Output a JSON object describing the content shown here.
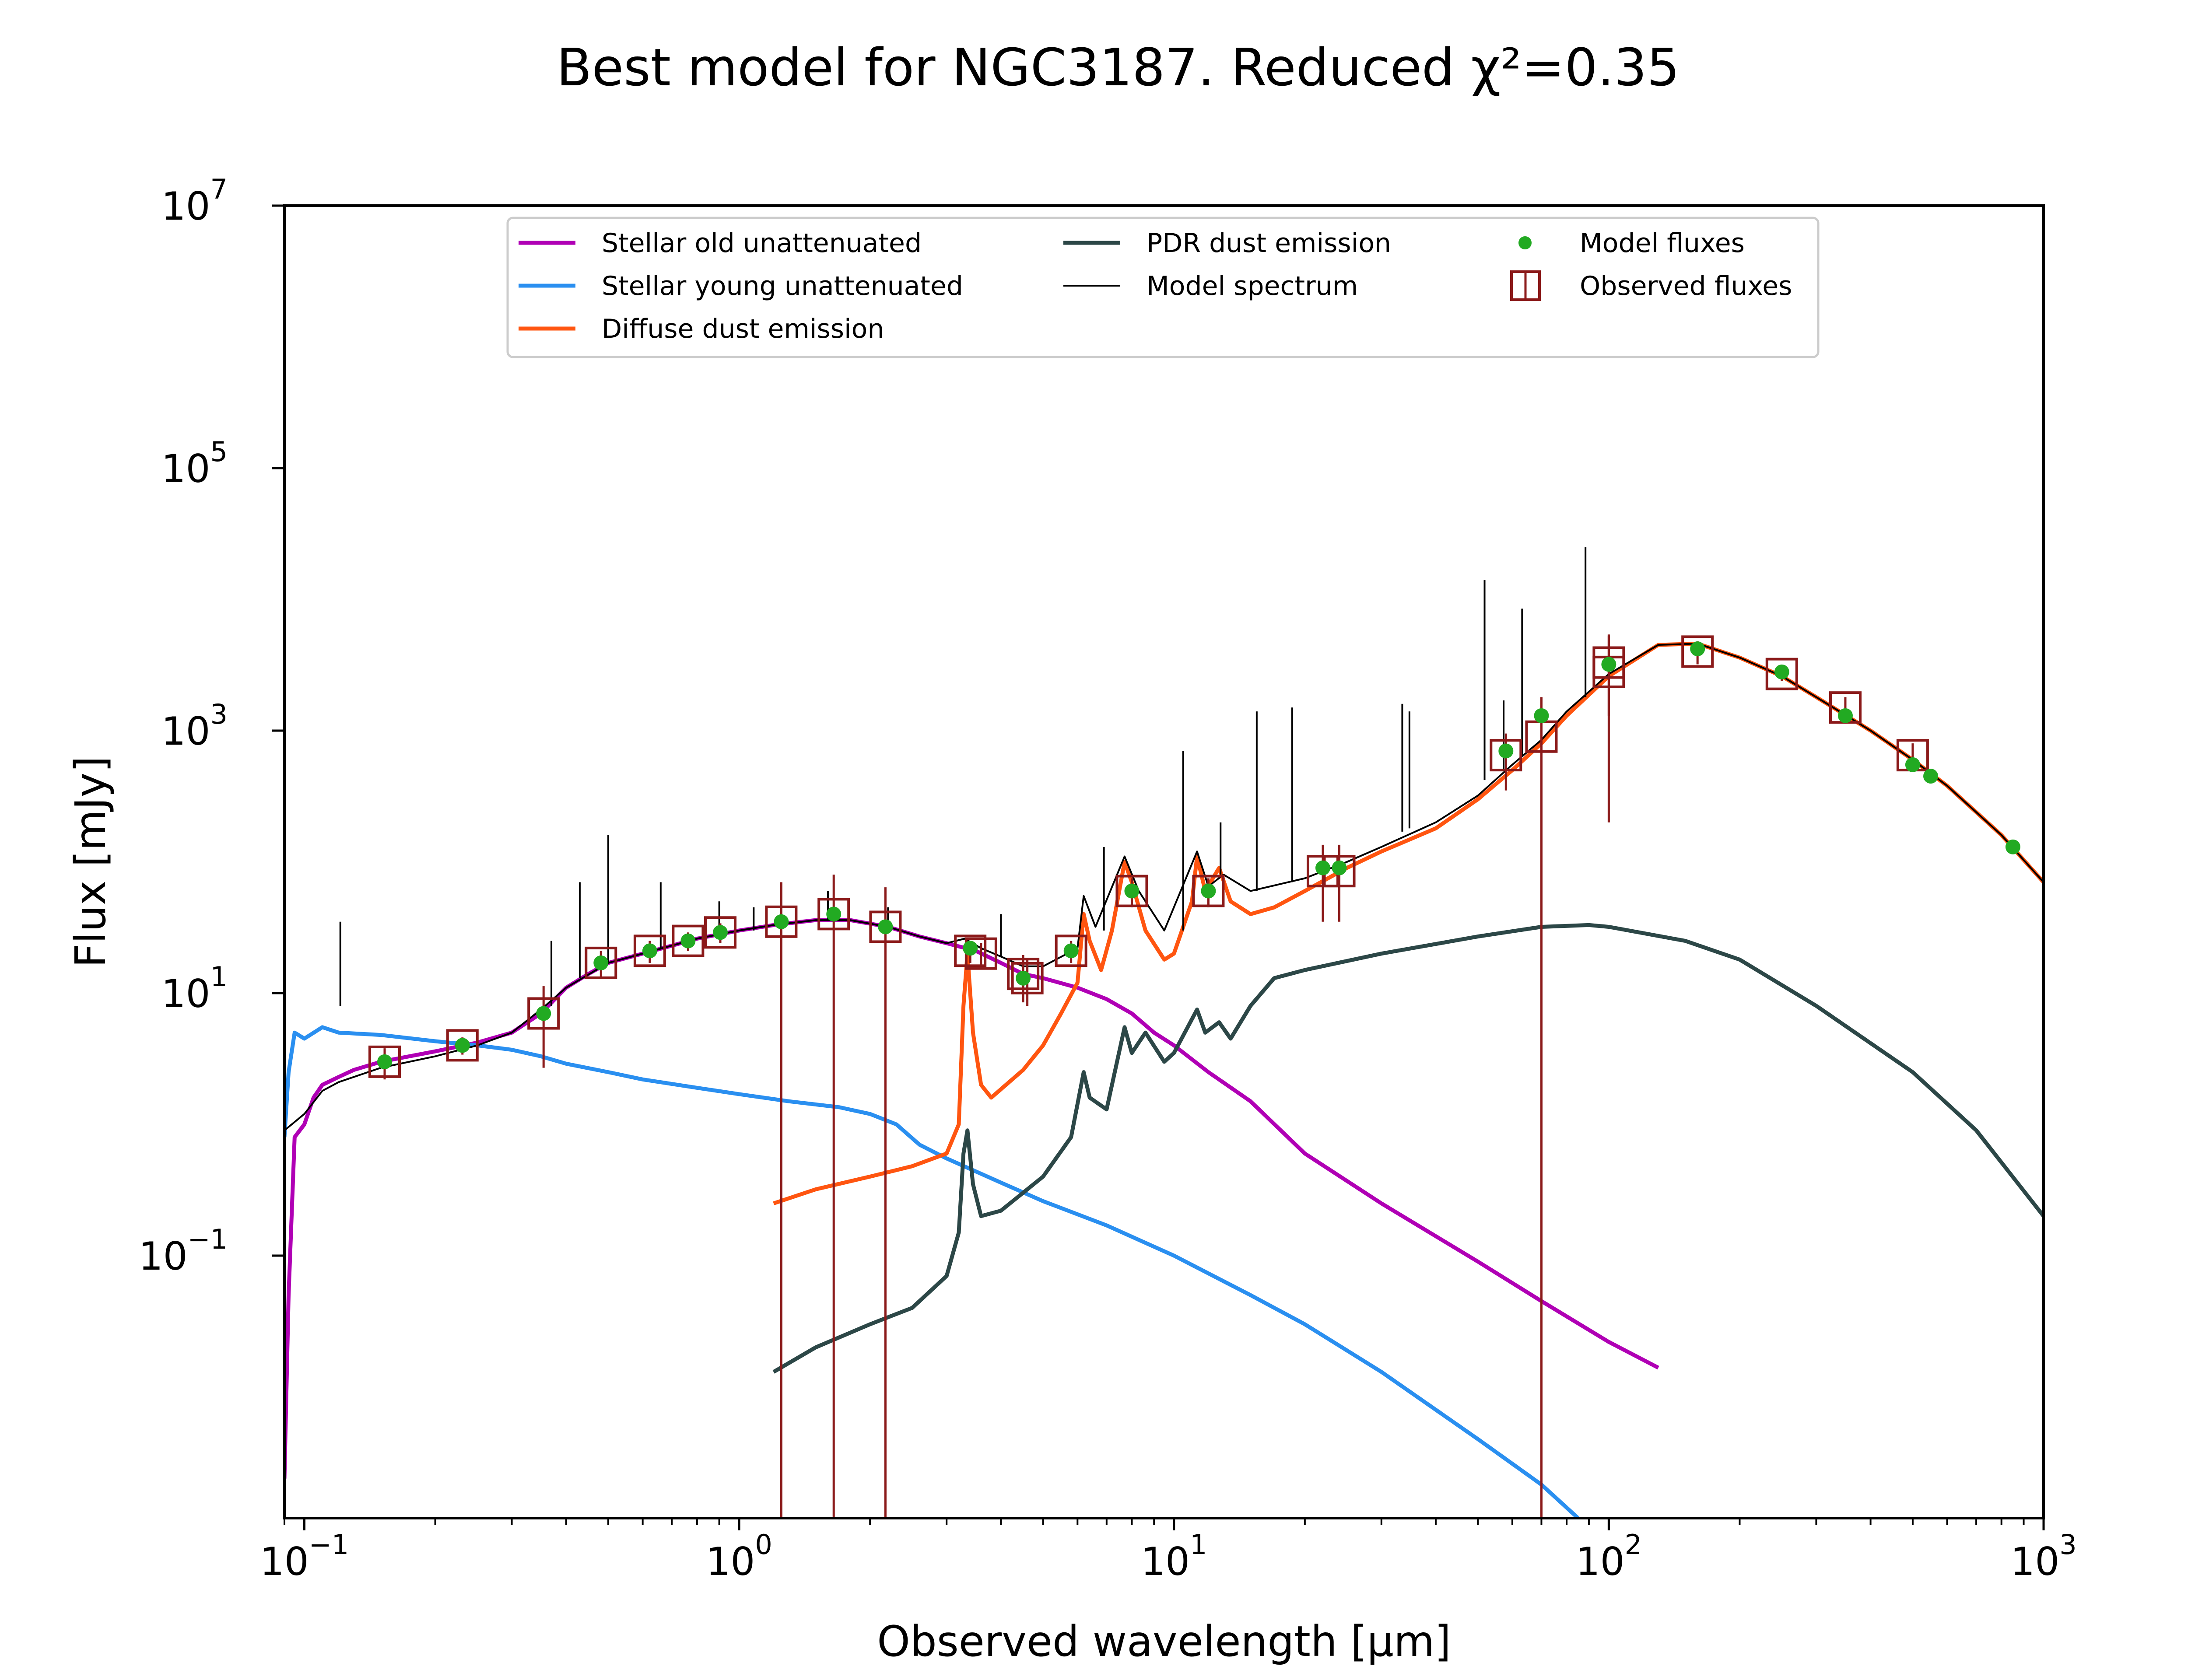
{
  "chart_data": {
    "type": "line",
    "title": "Best model for NGC3187. Reduced χ²=0.35",
    "xlabel": "Observed wavelength [μm]",
    "ylabel": "Flux [mJy]",
    "xscale": "log",
    "yscale": "log",
    "xlim": [
      0.09,
      1000
    ],
    "ylim": [
      0.001,
      10000000
    ],
    "grid": false,
    "legend_position": "top-center",
    "x_ticks": [
      {
        "value": 0.1,
        "base": "10",
        "exp": "−1"
      },
      {
        "value": 1,
        "base": "10",
        "exp": "0"
      },
      {
        "value": 10,
        "base": "10",
        "exp": "1"
      },
      {
        "value": 100,
        "base": "10",
        "exp": "2"
      },
      {
        "value": 1000,
        "base": "10",
        "exp": "3"
      }
    ],
    "y_ticks": [
      {
        "value": 0.1,
        "base": "10",
        "exp": "−1"
      },
      {
        "value": 10,
        "base": "10",
        "exp": "1"
      },
      {
        "value": 1000,
        "base": "10",
        "exp": "3"
      },
      {
        "value": 100000,
        "base": "10",
        "exp": "5"
      },
      {
        "value": 10000000,
        "base": "10",
        "exp": "7"
      }
    ],
    "series": [
      {
        "name": "Stellar old unattenuated",
        "color": "#b000b5",
        "points": [
          [
            0.09,
            0.002
          ],
          [
            0.092,
            0.05
          ],
          [
            0.095,
            0.8
          ],
          [
            0.1,
            1.0
          ],
          [
            0.105,
            1.6
          ],
          [
            0.11,
            2.0
          ],
          [
            0.12,
            2.3
          ],
          [
            0.13,
            2.6
          ],
          [
            0.15,
            3.0
          ],
          [
            0.2,
            3.6
          ],
          [
            0.25,
            4.2
          ],
          [
            0.3,
            5.0
          ],
          [
            0.35,
            7.0
          ],
          [
            0.4,
            11
          ],
          [
            0.45,
            14
          ],
          [
            0.5,
            17
          ],
          [
            0.6,
            20
          ],
          [
            0.7,
            23
          ],
          [
            0.8,
            26
          ],
          [
            1.0,
            30
          ],
          [
            1.2,
            33
          ],
          [
            1.5,
            36
          ],
          [
            1.8,
            36
          ],
          [
            2.2,
            32
          ],
          [
            2.6,
            27
          ],
          [
            3.0,
            24
          ],
          [
            3.5,
            21
          ],
          [
            4.0,
            17
          ],
          [
            4.5,
            14
          ],
          [
            5.0,
            13
          ],
          [
            6.0,
            11
          ],
          [
            7.0,
            9
          ],
          [
            8.0,
            7
          ],
          [
            9.0,
            5
          ],
          [
            10,
            4
          ],
          [
            12,
            2.5
          ],
          [
            15,
            1.5
          ],
          [
            20,
            0.6
          ],
          [
            30,
            0.25
          ],
          [
            50,
            0.09
          ],
          [
            70,
            0.045
          ],
          [
            100,
            0.022
          ],
          [
            130,
            0.014
          ]
        ]
      },
      {
        "name": "Stellar young unattenuated",
        "color": "#2a8ff0",
        "points": [
          [
            0.09,
            0.8
          ],
          [
            0.092,
            2.5
          ],
          [
            0.095,
            5.0
          ],
          [
            0.1,
            4.5
          ],
          [
            0.11,
            5.5
          ],
          [
            0.12,
            5.0
          ],
          [
            0.15,
            4.8
          ],
          [
            0.2,
            4.3
          ],
          [
            0.25,
            4.0
          ],
          [
            0.3,
            3.7
          ],
          [
            0.35,
            3.3
          ],
          [
            0.4,
            2.9
          ],
          [
            0.5,
            2.5
          ],
          [
            0.6,
            2.2
          ],
          [
            0.8,
            1.9
          ],
          [
            1.0,
            1.7
          ],
          [
            1.3,
            1.5
          ],
          [
            1.7,
            1.35
          ],
          [
            2.0,
            1.2
          ],
          [
            2.3,
            1.0
          ],
          [
            2.6,
            0.7
          ],
          [
            3.0,
            0.55
          ],
          [
            4.0,
            0.36
          ],
          [
            5.0,
            0.26
          ],
          [
            7.0,
            0.17
          ],
          [
            10,
            0.1
          ],
          [
            15,
            0.05
          ],
          [
            20,
            0.03
          ],
          [
            30,
            0.013
          ],
          [
            50,
            0.004
          ],
          [
            70,
            0.0018
          ],
          [
            85,
            0.001
          ]
        ]
      },
      {
        "name": "Diffuse dust emission",
        "color": "#ff5510",
        "points": [
          [
            1.2,
            0.25
          ],
          [
            1.5,
            0.32
          ],
          [
            2.0,
            0.4
          ],
          [
            2.5,
            0.48
          ],
          [
            3.0,
            0.6
          ],
          [
            3.2,
            1.0
          ],
          [
            3.28,
            8.0
          ],
          [
            3.35,
            20
          ],
          [
            3.45,
            5.0
          ],
          [
            3.6,
            2.0
          ],
          [
            3.8,
            1.6
          ],
          [
            4.5,
            2.6
          ],
          [
            5.0,
            4.0
          ],
          [
            5.5,
            7.0
          ],
          [
            6.0,
            12
          ],
          [
            6.2,
            40
          ],
          [
            6.4,
            25
          ],
          [
            6.8,
            15
          ],
          [
            7.2,
            30
          ],
          [
            7.7,
            100
          ],
          [
            8.0,
            70
          ],
          [
            8.6,
            30
          ],
          [
            9.5,
            18
          ],
          [
            10,
            20
          ],
          [
            11.0,
            50
          ],
          [
            11.3,
            110
          ],
          [
            11.8,
            60
          ],
          [
            12.7,
            90
          ],
          [
            13.5,
            50
          ],
          [
            15,
            40
          ],
          [
            17,
            45
          ],
          [
            20,
            60
          ],
          [
            25,
            90
          ],
          [
            30,
            120
          ],
          [
            40,
            180
          ],
          [
            50,
            300
          ],
          [
            60,
            500
          ],
          [
            70,
            800
          ],
          [
            80,
            1300
          ],
          [
            100,
            2600
          ],
          [
            130,
            4500
          ],
          [
            160,
            4600
          ],
          [
            200,
            3600
          ],
          [
            250,
            2600
          ],
          [
            300,
            1800
          ],
          [
            400,
            1000
          ],
          [
            500,
            600
          ],
          [
            600,
            380
          ],
          [
            800,
            160
          ],
          [
            1000,
            70
          ]
        ]
      },
      {
        "name": "PDR dust emission",
        "color": "#2c4747",
        "points": [
          [
            1.2,
            0.013
          ],
          [
            1.5,
            0.02
          ],
          [
            2.0,
            0.03
          ],
          [
            2.5,
            0.04
          ],
          [
            3.0,
            0.07
          ],
          [
            3.2,
            0.15
          ],
          [
            3.28,
            0.6
          ],
          [
            3.35,
            0.9
          ],
          [
            3.45,
            0.35
          ],
          [
            3.6,
            0.2
          ],
          [
            4.0,
            0.22
          ],
          [
            5.0,
            0.4
          ],
          [
            5.8,
            0.8
          ],
          [
            6.2,
            2.5
          ],
          [
            6.4,
            1.6
          ],
          [
            7.0,
            1.3
          ],
          [
            7.7,
            5.5
          ],
          [
            8.0,
            3.5
          ],
          [
            8.6,
            5.0
          ],
          [
            9.5,
            3.0
          ],
          [
            10,
            3.5
          ],
          [
            11.3,
            7.5
          ],
          [
            11.8,
            5.0
          ],
          [
            12.7,
            6.0
          ],
          [
            13.5,
            4.5
          ],
          [
            15,
            8
          ],
          [
            17,
            13
          ],
          [
            20,
            15
          ],
          [
            30,
            20
          ],
          [
            50,
            27
          ],
          [
            70,
            32
          ],
          [
            90,
            33
          ],
          [
            100,
            32
          ],
          [
            150,
            25
          ],
          [
            200,
            18
          ],
          [
            300,
            8
          ],
          [
            500,
            2.5
          ],
          [
            700,
            0.9
          ],
          [
            1000,
            0.2
          ]
        ]
      },
      {
        "name": "Model spectrum",
        "color": "#000000",
        "points": [
          [
            0.09,
            0.9
          ],
          [
            0.1,
            1.2
          ],
          [
            0.11,
            1.8
          ],
          [
            0.12,
            2.1
          ],
          [
            0.15,
            2.7
          ],
          [
            0.2,
            3.3
          ],
          [
            0.25,
            4.0
          ],
          [
            0.3,
            5.0
          ],
          [
            0.35,
            7.5
          ],
          [
            0.4,
            11
          ],
          [
            0.5,
            17
          ],
          [
            0.6,
            20
          ],
          [
            0.8,
            26
          ],
          [
            1.0,
            30
          ],
          [
            1.2,
            33
          ],
          [
            1.5,
            36
          ],
          [
            1.8,
            36
          ],
          [
            2.2,
            32
          ],
          [
            2.6,
            27
          ],
          [
            3.0,
            24
          ],
          [
            3.3,
            26
          ],
          [
            3.6,
            22
          ],
          [
            4.0,
            19
          ],
          [
            4.5,
            16
          ],
          [
            5.0,
            16
          ],
          [
            6.0,
            22
          ],
          [
            6.2,
            55
          ],
          [
            6.6,
            32
          ],
          [
            7.7,
            110
          ],
          [
            8.3,
            60
          ],
          [
            9.5,
            30
          ],
          [
            11.3,
            120
          ],
          [
            12.0,
            65
          ],
          [
            13,
            80
          ],
          [
            15,
            60
          ],
          [
            20,
            75
          ],
          [
            25,
            100
          ],
          [
            30,
            130
          ],
          [
            40,
            200
          ],
          [
            50,
            320
          ],
          [
            60,
            550
          ],
          [
            70,
            850
          ],
          [
            80,
            1400
          ],
          [
            100,
            2700
          ],
          [
            130,
            4500
          ],
          [
            160,
            4600
          ],
          [
            200,
            3600
          ],
          [
            250,
            2600
          ],
          [
            300,
            1800
          ],
          [
            400,
            1000
          ],
          [
            500,
            600
          ],
          [
            600,
            380
          ],
          [
            800,
            160
          ],
          [
            1000,
            70
          ]
        ],
        "emission_lines": [
          [
            0.121,
            8,
            35
          ],
          [
            0.37,
            8,
            25
          ],
          [
            0.43,
            13,
            70
          ],
          [
            0.5,
            17,
            160
          ],
          [
            0.66,
            22,
            70
          ],
          [
            0.9,
            26,
            50
          ],
          [
            1.08,
            30,
            45
          ],
          [
            1.6,
            36,
            60
          ],
          [
            2.2,
            32,
            45
          ],
          [
            4.0,
            19,
            40
          ],
          [
            6.9,
            30,
            130
          ],
          [
            10.5,
            30,
            700
          ],
          [
            12.8,
            80,
            200
          ],
          [
            15.5,
            60,
            1400
          ],
          [
            18.7,
            70,
            1500
          ],
          [
            33.5,
            170,
            1600
          ],
          [
            34.8,
            180,
            1400
          ],
          [
            51.8,
            420,
            14000
          ],
          [
            57.3,
            500,
            1700
          ],
          [
            63.2,
            650,
            8500
          ],
          [
            88.4,
            1800,
            25000
          ]
        ]
      }
    ],
    "model_fluxes": {
      "name": "Model fluxes",
      "color": "#22aa22",
      "points": [
        [
          0.153,
          3.0
        ],
        [
          0.231,
          4.0
        ],
        [
          0.355,
          7.0
        ],
        [
          0.481,
          17
        ],
        [
          0.623,
          21
        ],
        [
          0.763,
          25
        ],
        [
          0.905,
          29
        ],
        [
          1.25,
          35
        ],
        [
          1.65,
          40
        ],
        [
          2.17,
          32
        ],
        [
          3.4,
          22
        ],
        [
          4.5,
          13
        ],
        [
          5.8,
          21
        ],
        [
          8.0,
          60
        ],
        [
          12,
          60
        ],
        [
          22,
          90
        ],
        [
          24,
          90
        ],
        [
          58,
          700
        ],
        [
          70,
          1300
        ],
        [
          100,
          3200
        ],
        [
          160,
          4200
        ],
        [
          250,
          2800
        ],
        [
          350,
          1300
        ],
        [
          500,
          550
        ],
        [
          550,
          450
        ],
        [
          850,
          130
        ]
      ]
    },
    "observed_fluxes": {
      "name": "Observed fluxes",
      "color": "#8b1a1a",
      "points": [
        [
          0.153,
          3.0,
          0.8
        ],
        [
          0.231,
          4.0,
          0.6
        ],
        [
          0.355,
          7.0,
          4.3
        ],
        [
          0.481,
          17,
          4
        ],
        [
          0.623,
          21,
          4
        ],
        [
          0.763,
          25,
          4
        ],
        [
          0.905,
          29,
          5
        ],
        [
          1.25,
          35,
          34.999
        ],
        [
          1.65,
          40,
          39.999
        ],
        [
          2.17,
          32,
          31.999
        ],
        [
          3.4,
          21,
          4
        ],
        [
          3.6,
          20,
          4
        ],
        [
          4.5,
          14,
          5.5
        ],
        [
          4.6,
          13,
          5
        ],
        [
          5.8,
          21,
          4
        ],
        [
          8.0,
          60,
          15
        ],
        [
          12,
          60,
          15
        ],
        [
          22,
          85,
          50
        ],
        [
          24,
          85,
          50
        ],
        [
          58,
          650,
          300
        ],
        [
          70,
          900,
          899.999
        ],
        [
          100,
          2800,
          2600
        ],
        [
          100,
          3300,
          2000
        ],
        [
          160,
          4000,
          800
        ],
        [
          250,
          2700,
          300
        ],
        [
          350,
          1500,
          300
        ],
        [
          500,
          650,
          150
        ]
      ]
    }
  }
}
